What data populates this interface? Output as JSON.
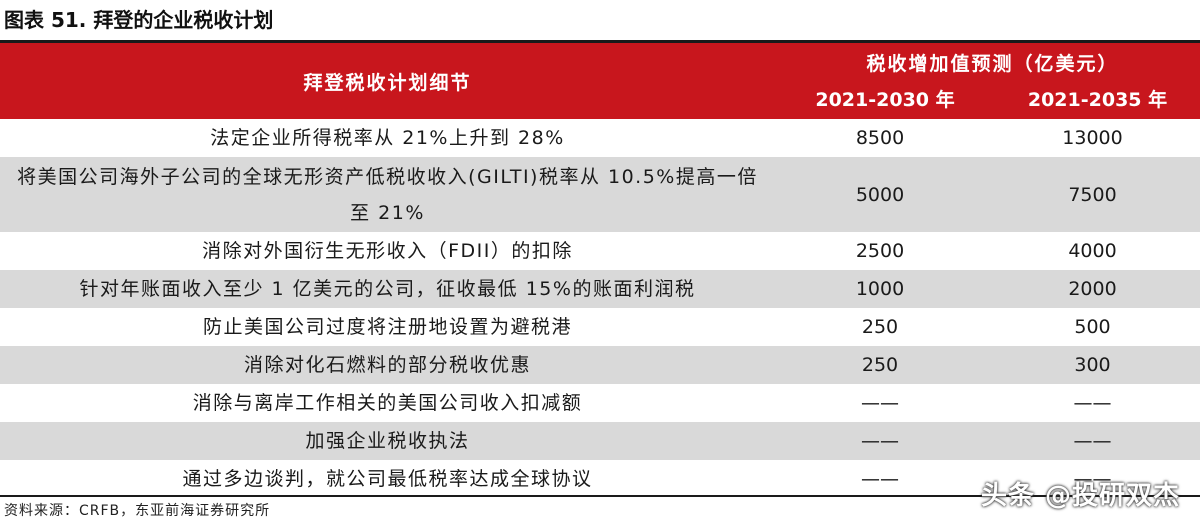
{
  "figure_title": "图表 51. 拜登的企业税收计划",
  "table": {
    "header_left": "拜登税收计划细节",
    "header_group": "税收增加值预测（亿美元）",
    "header_cols": [
      "2021-2030 年",
      "2021-2035 年"
    ],
    "rows": [
      {
        "desc": "法定企业所得税率从 21%上升到 28%",
        "v1": "8500",
        "v2": "13000"
      },
      {
        "desc": "将美国公司海外子公司的全球无形资产低税收收入(GILTI)税率从 10.5%提高一倍至 21%",
        "v1": "5000",
        "v2": "7500"
      },
      {
        "desc": "消除对外国衍生无形收入（FDII）的扣除",
        "v1": "2500",
        "v2": "4000"
      },
      {
        "desc": "针对年账面收入至少 1 亿美元的公司，征收最低 15%的账面利润税",
        "v1": "1000",
        "v2": "2000"
      },
      {
        "desc": "防止美国公司过度将注册地设置为避税港",
        "v1": "250",
        "v2": "500"
      },
      {
        "desc": "消除对化石燃料的部分税收优惠",
        "v1": "250",
        "v2": "300"
      },
      {
        "desc": "消除与离岸工作相关的美国公司收入扣减额",
        "v1": "——",
        "v2": "——"
      },
      {
        "desc": "加强企业税收执法",
        "v1": "——",
        "v2": "——"
      },
      {
        "desc": "通过多边谈判，就公司最低税率达成全球协议",
        "v1": "——",
        "v2": "——"
      }
    ]
  },
  "source": "资料来源：CRFB，东亚前海证券研究所",
  "watermark": "头条 @投研双杰",
  "colors": {
    "header_bg": "#c8161d",
    "alt_row_bg": "#d9d9d9"
  }
}
